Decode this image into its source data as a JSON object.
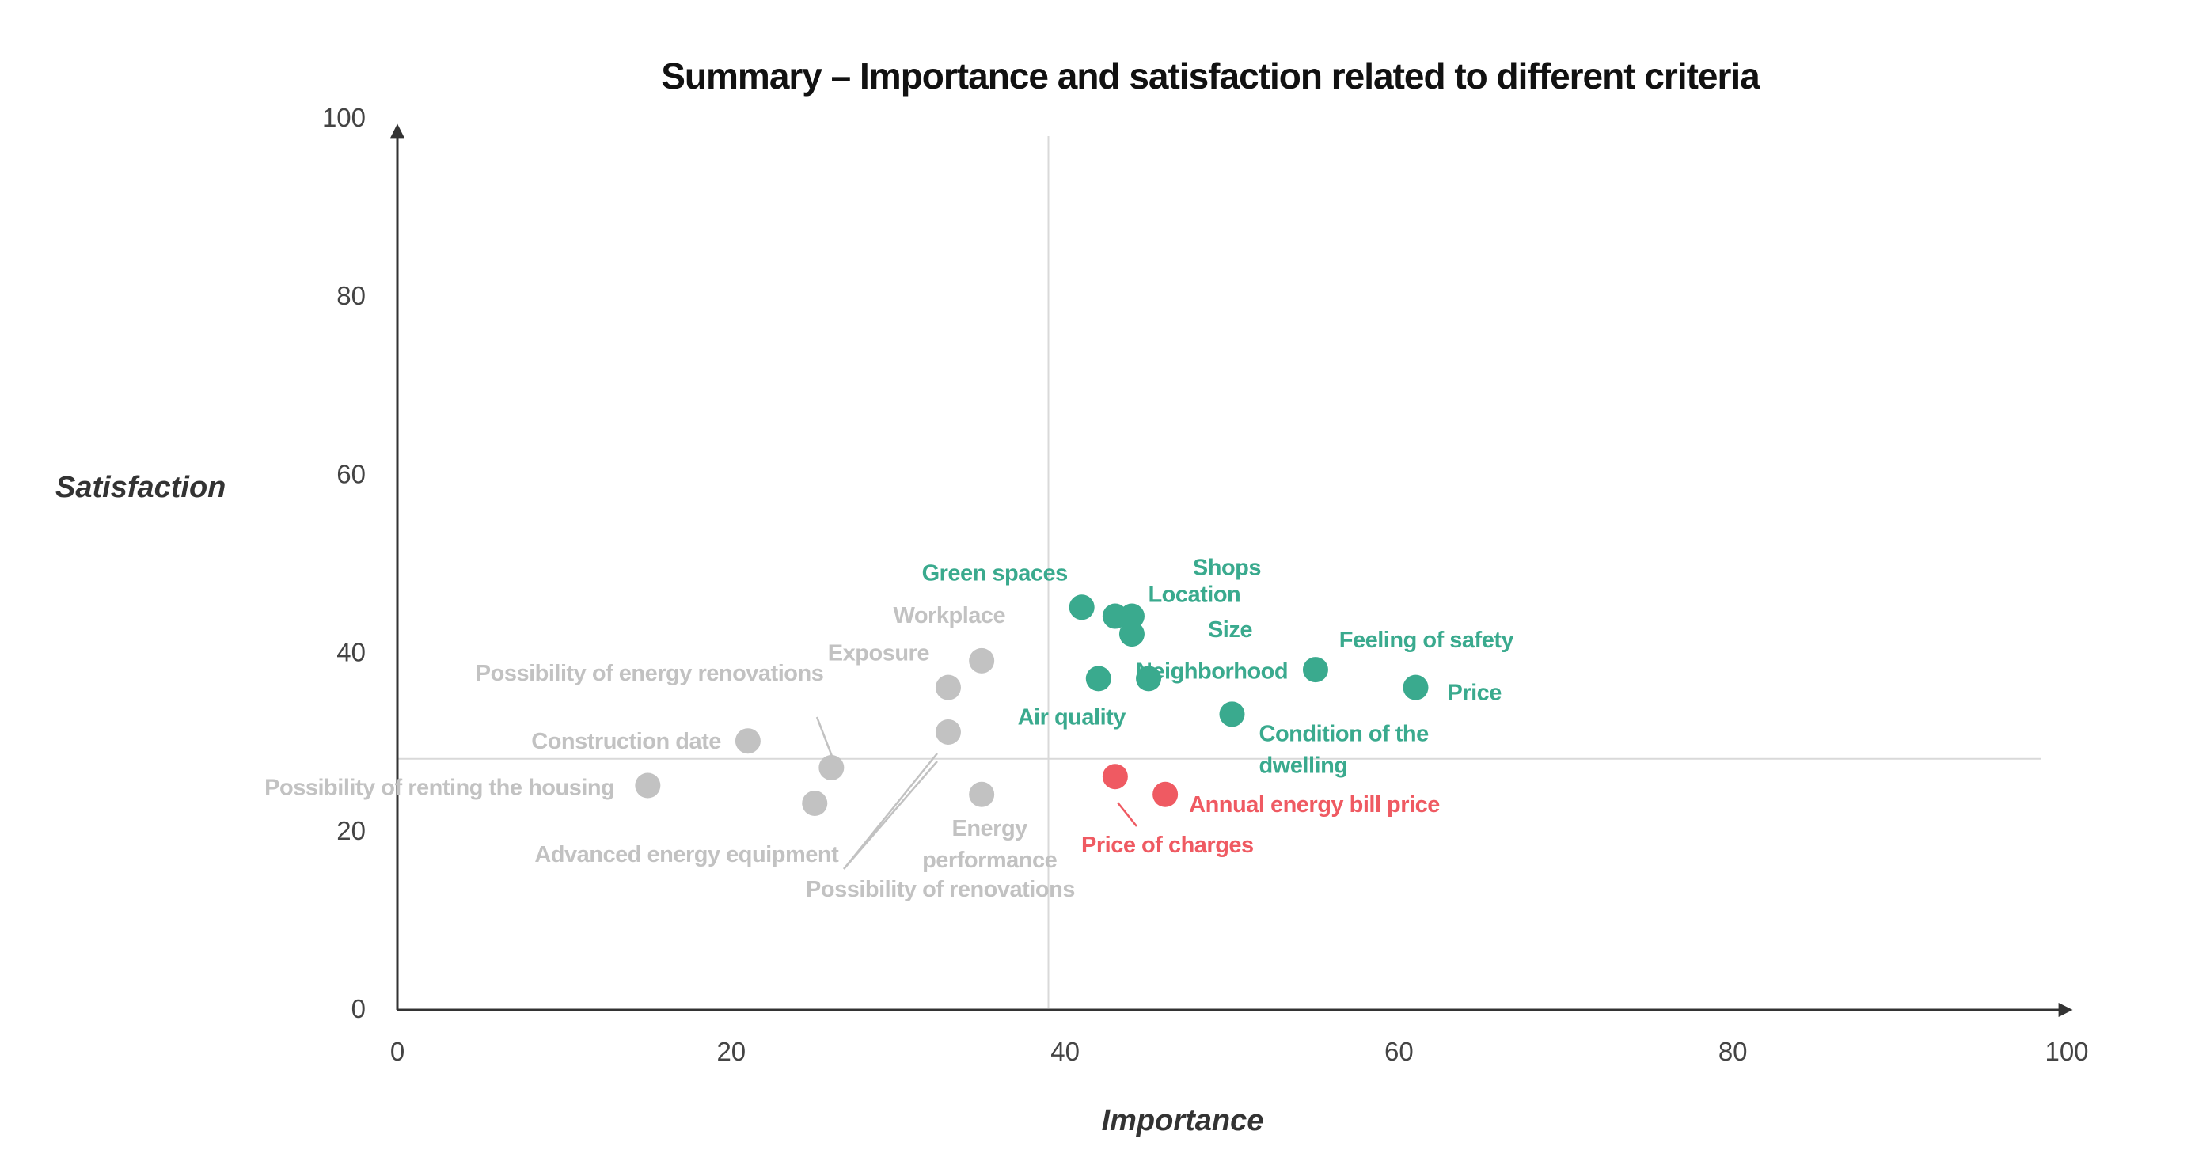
{
  "chart_data": {
    "type": "scatter",
    "title": "Summary – Importance and satisfaction related to different criteria",
    "xlabel": "Importance",
    "ylabel": "Satisfaction",
    "xlim": [
      0,
      100
    ],
    "ylim": [
      0,
      100
    ],
    "xticks": [
      "0",
      "20",
      "40",
      "60",
      "80",
      "100"
    ],
    "yticks": [
      "0",
      "20",
      "40",
      "60",
      "80",
      "100"
    ],
    "grid": false,
    "reference_lines": {
      "x": 39,
      "y": 28
    },
    "colors": {
      "satisfied": "#3AAA8E",
      "dissatisfied": "#EF5A62",
      "low_importance": "#C2C2C2"
    },
    "series": [
      {
        "name": "low_importance",
        "points": [
          {
            "label": "Possibility of renting the housing",
            "x": 15,
            "y": 25
          },
          {
            "label": "Construction date",
            "x": 21,
            "y": 30
          },
          {
            "label": "Possibility of energy renovations",
            "x": 26,
            "y": 27
          },
          {
            "label": "Advanced energy equipment",
            "x": 25,
            "y": 23
          },
          {
            "label": "Exposure",
            "x": 33,
            "y": 36
          },
          {
            "label": "Workplace",
            "x": 35,
            "y": 39
          },
          {
            "label": "Possibility of renovations",
            "x": 33,
            "y": 31
          },
          {
            "label": "Energy performance",
            "x": 35,
            "y": 24
          }
        ]
      },
      {
        "name": "satisfied",
        "points": [
          {
            "label": "Green spaces",
            "x": 41,
            "y": 45
          },
          {
            "label": "Shops",
            "x": 44,
            "y": 44
          },
          {
            "label": "Location",
            "x": 43,
            "y": 44
          },
          {
            "label": "Size",
            "x": 44,
            "y": 42
          },
          {
            "label": "Air quality",
            "x": 42,
            "y": 37
          },
          {
            "label": "Neighborhood",
            "x": 45,
            "y": 37
          },
          {
            "label": "Feeling of safety",
            "x": 55,
            "y": 38
          },
          {
            "label": "Price",
            "x": 61,
            "y": 36
          },
          {
            "label": "Condition of the dwelling",
            "x": 50,
            "y": 33
          }
        ]
      },
      {
        "name": "dissatisfied",
        "points": [
          {
            "label": "Price of charges",
            "x": 43,
            "y": 26
          },
          {
            "label": "Annual energy bill price",
            "x": 46,
            "y": 24
          }
        ]
      }
    ]
  }
}
